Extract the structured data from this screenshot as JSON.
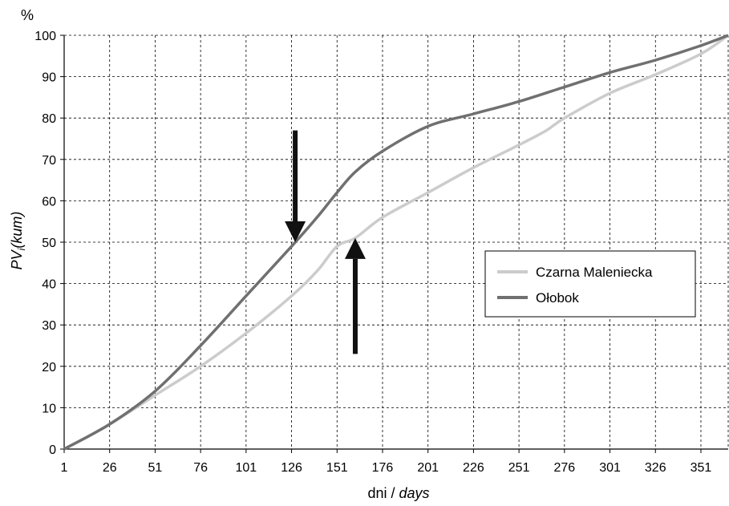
{
  "chart_data": {
    "type": "line",
    "y_unit_label": "%",
    "ylabel_main": "PV",
    "ylabel_sub": "i",
    "ylabel_rest": "(kum)",
    "xlabel_main": "dni / ",
    "xlabel_italic": "days",
    "xlim": [
      1,
      366
    ],
    "ylim": [
      0,
      100
    ],
    "x_ticks": [
      1,
      26,
      51,
      76,
      101,
      126,
      151,
      176,
      201,
      226,
      251,
      276,
      301,
      326,
      351
    ],
    "y_ticks": [
      0,
      10,
      20,
      30,
      40,
      50,
      60,
      70,
      80,
      90,
      100
    ],
    "grid": true,
    "legend_position": "right",
    "series": [
      {
        "name": "Czarna Maleniecka",
        "color": "#cccccc",
        "x": [
          1,
          26,
          51,
          76,
          101,
          126,
          140,
          151,
          161,
          176,
          201,
          226,
          251,
          266,
          276,
          301,
          326,
          351,
          366
        ],
        "y": [
          0,
          6,
          13,
          20,
          28,
          37,
          43,
          49,
          51,
          56,
          62,
          68,
          73.5,
          77,
          80,
          86,
          90.5,
          95.5,
          100
        ]
      },
      {
        "name": "Ołobok",
        "color": "#707070",
        "x": [
          1,
          26,
          51,
          76,
          101,
          126,
          140,
          151,
          161,
          176,
          201,
          226,
          251,
          276,
          301,
          326,
          351,
          366
        ],
        "y": [
          0,
          6,
          14,
          25,
          37,
          49,
          56,
          62,
          67,
          72,
          78,
          81,
          84,
          87.5,
          91,
          94,
          97.5,
          100
        ]
      }
    ],
    "annotations": [
      {
        "type": "arrow-down",
        "x": 128,
        "y_from": 77,
        "y_to": 50,
        "color": "#111111"
      },
      {
        "type": "arrow-up",
        "x": 161,
        "y_from": 23,
        "y_to": 51,
        "color": "#111111"
      }
    ]
  }
}
